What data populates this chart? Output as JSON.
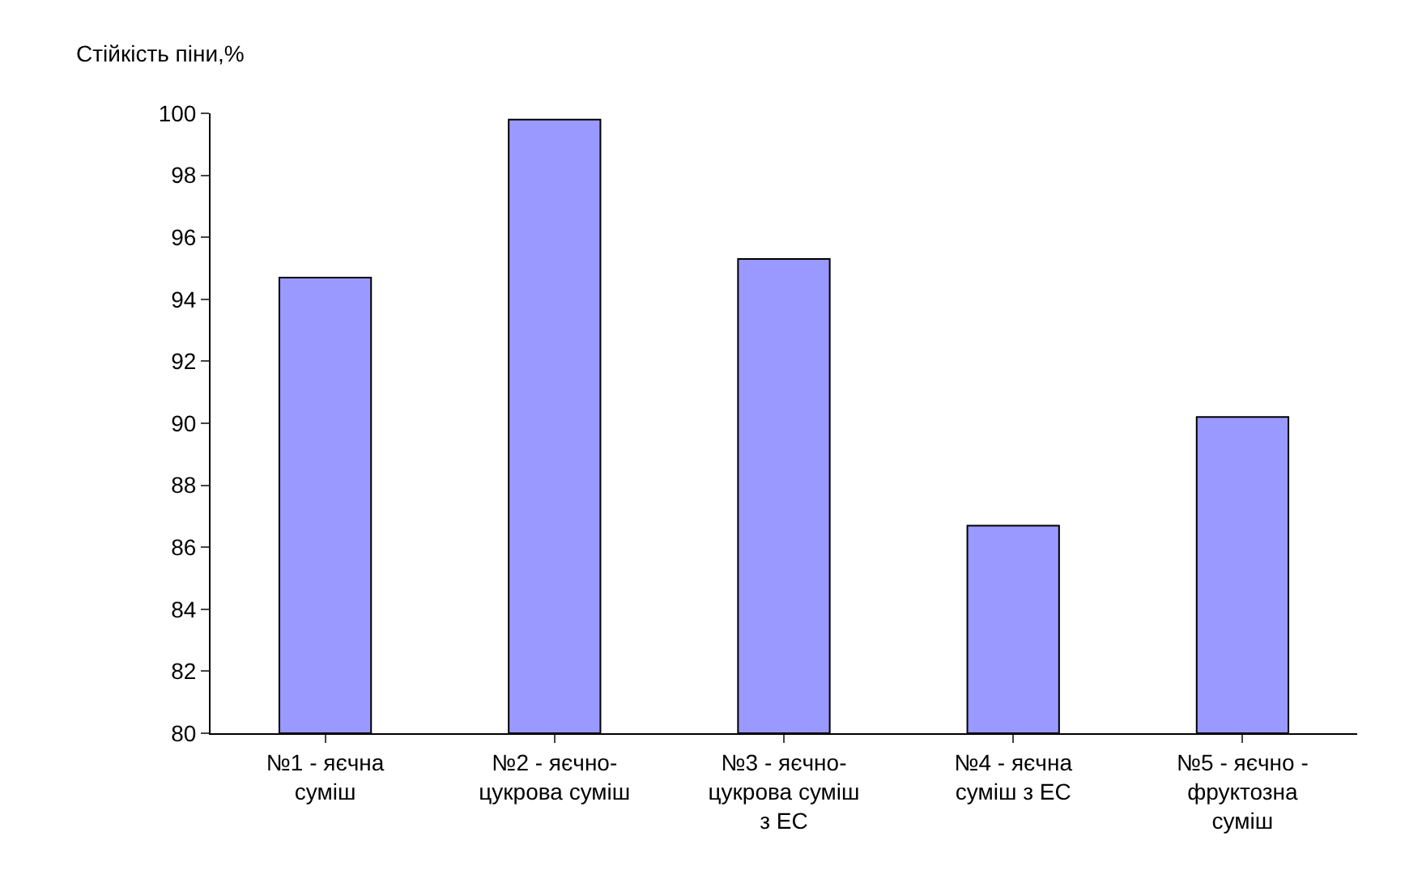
{
  "chart_data": {
    "type": "bar",
    "ylabel": "Стійкість піни,%",
    "categories": [
      "№1 - яєчна суміш",
      "№2 - яєчно-цукрова суміш",
      "№3 - яєчно-цукрова суміш з ЕС",
      "№4 - яєчна суміш з ЕС",
      "№5 - яєчно - фруктозна суміш"
    ],
    "values": [
      94.7,
      99.8,
      95.3,
      86.7,
      90.2
    ],
    "color": "#9999ff",
    "ylim": [
      80,
      100
    ],
    "yticks": [
      80,
      82,
      84,
      86,
      88,
      90,
      92,
      94,
      96,
      98,
      100
    ]
  }
}
